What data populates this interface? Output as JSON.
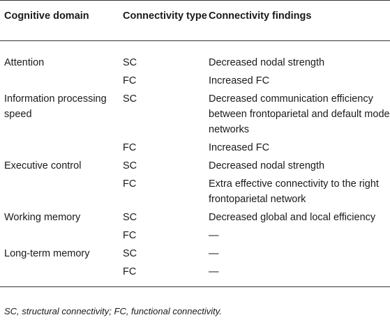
{
  "table": {
    "headers": [
      "Cognitive domain",
      "Connectivity type",
      "Connectivity findings"
    ],
    "rows": [
      {
        "domain": "Attention",
        "type": "SC",
        "finding": "Decreased nodal strength"
      },
      {
        "domain": "",
        "type": "FC",
        "finding": "Increased FC"
      },
      {
        "domain": "Information processing speed",
        "type": "SC",
        "finding": "Decreased communication efficiency between frontoparietal and default mode networks"
      },
      {
        "domain": "",
        "type": "FC",
        "finding": "Increased FC"
      },
      {
        "domain": "Executive control",
        "type": "SC",
        "finding": "Decreased nodal strength"
      },
      {
        "domain": "",
        "type": "FC",
        "finding": "Extra effective connectivity to the right frontoparietal network"
      },
      {
        "domain": "Working memory",
        "type": "SC",
        "finding": "Decreased global and local efficiency"
      },
      {
        "domain": "",
        "type": "FC",
        "finding": "—"
      },
      {
        "domain": "Long-term memory",
        "type": "SC",
        "finding": "—"
      },
      {
        "domain": "",
        "type": "FC",
        "finding": "—"
      }
    ]
  },
  "footnote": "SC, structural connectivity; FC, functional connectivity."
}
